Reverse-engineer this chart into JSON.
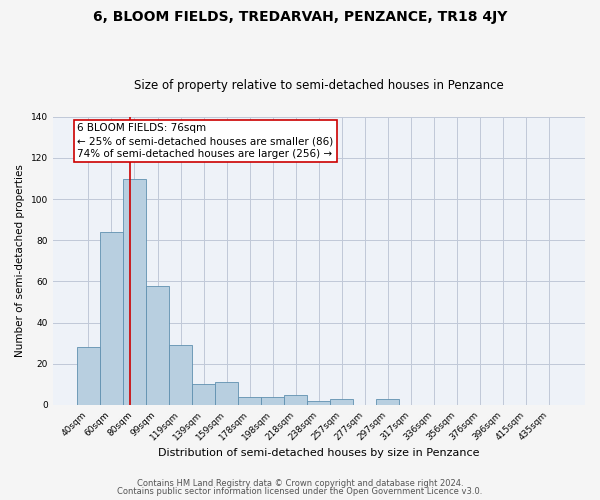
{
  "title": "6, BLOOM FIELDS, TREDARVAH, PENZANCE, TR18 4JY",
  "subtitle": "Size of property relative to semi-detached houses in Penzance",
  "xlabel": "Distribution of semi-detached houses by size in Penzance",
  "ylabel": "Number of semi-detached properties",
  "categories": [
    "40sqm",
    "60sqm",
    "80sqm",
    "99sqm",
    "119sqm",
    "139sqm",
    "159sqm",
    "178sqm",
    "198sqm",
    "218sqm",
    "238sqm",
    "257sqm",
    "277sqm",
    "297sqm",
    "317sqm",
    "336sqm",
    "356sqm",
    "376sqm",
    "396sqm",
    "415sqm",
    "435sqm"
  ],
  "values": [
    28,
    84,
    110,
    58,
    29,
    10,
    11,
    4,
    4,
    5,
    2,
    3,
    0,
    3,
    0,
    0,
    0,
    0,
    0,
    0,
    0
  ],
  "bar_color": "#b8cfe0",
  "bar_edge_color": "#6090b0",
  "annotation_line1": "6 BLOOM FIELDS: 76sqm",
  "annotation_line2": "← 25% of semi-detached houses are smaller (86)",
  "annotation_line3": "74% of semi-detached houses are larger (256) →",
  "vline_color": "#cc0000",
  "ylim": [
    0,
    140
  ],
  "yticks": [
    0,
    20,
    40,
    60,
    80,
    100,
    120,
    140
  ],
  "grid_color": "#c0c8d8",
  "bg_color": "#eef2f8",
  "fig_bg_color": "#f5f5f5",
  "footer1": "Contains HM Land Registry data © Crown copyright and database right 2024.",
  "footer2": "Contains public sector information licensed under the Open Government Licence v3.0.",
  "title_fontsize": 10,
  "subtitle_fontsize": 8.5,
  "xlabel_fontsize": 8,
  "ylabel_fontsize": 7.5,
  "tick_fontsize": 6.5,
  "footer_fontsize": 6,
  "annotation_fontsize": 7.5,
  "vline_x": 1.8
}
